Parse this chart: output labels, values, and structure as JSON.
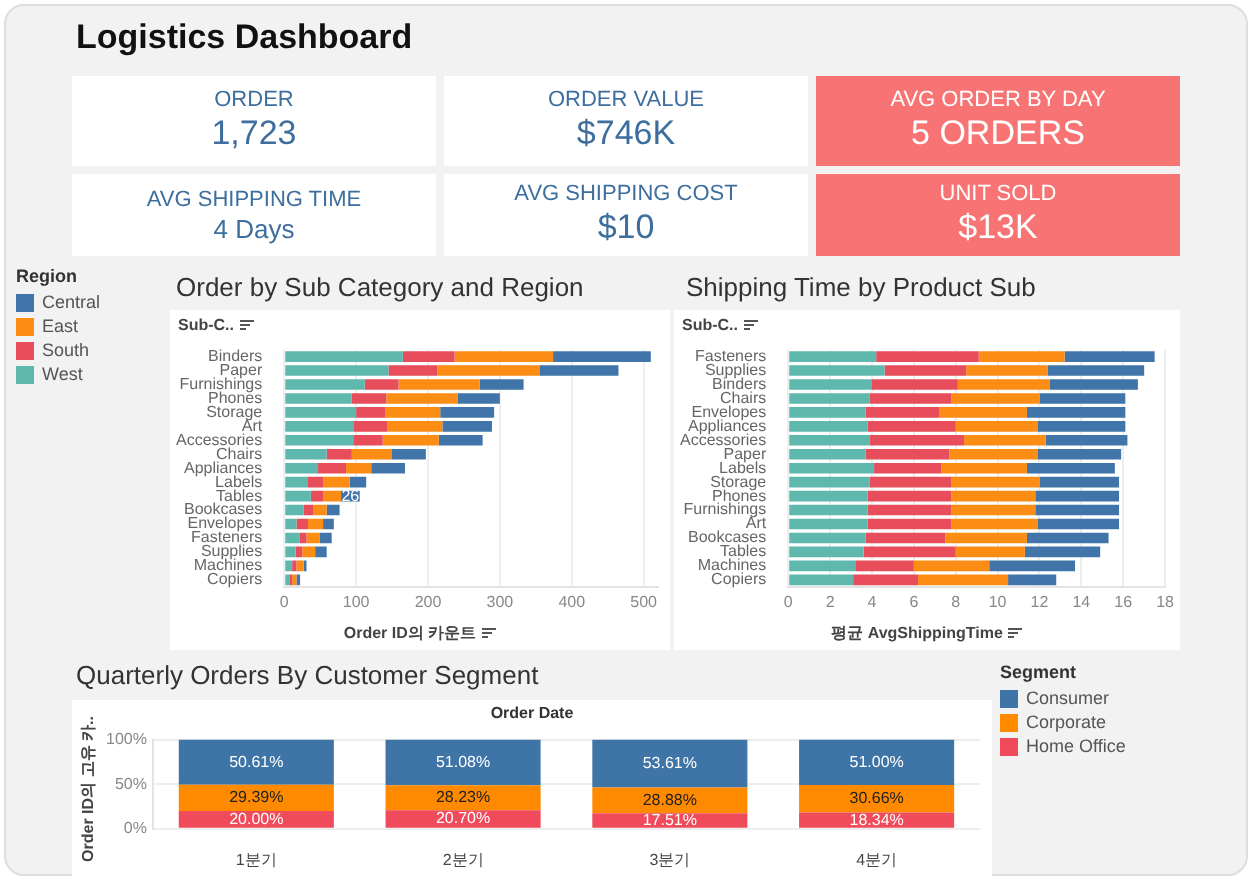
{
  "chart_data": [
    {
      "type": "other",
      "title": "Logistics Dashboard",
      "annotations": [
        "ORDER",
        "1,723",
        "ORDER VALUE",
        "$746K",
        "AVG ORDER BY DAY",
        "5 ORDERS",
        "AVG SHIPPING TIME",
        "4 Days",
        "AVG SHIPPING COST",
        "$10",
        "UNIT SOLD",
        "$13K"
      ],
      "colors": [
        "#ffffff",
        "#ffffff",
        "#f87474",
        "#ffffff",
        "#ffffff",
        "#f87474"
      ]
    },
    {
      "type": "bar",
      "orientation": "horizontal",
      "stacked": true,
      "title": "Order by Sub Category and Region",
      "xlabel": "Order ID의 카운트",
      "ylabel": "Sub-C..",
      "legend": "left",
      "legend_title": "Region",
      "grid": "x",
      "xlim": [
        0,
        520
      ],
      "xticks": [
        0,
        100,
        200,
        300,
        400,
        500
      ],
      "categories": [
        "Binders",
        "Paper",
        "Furnishings",
        "Phones",
        "Storage",
        "Art",
        "Accessories",
        "Chairs",
        "Appliances",
        "Labels",
        "Tables",
        "Bookcases",
        "Envelopes",
        "Fasteners",
        "Supplies",
        "Machines",
        "Copiers"
      ],
      "series": [
        {
          "name": "West",
          "color": "#5fb8ad",
          "values": [
            165,
            145,
            112,
            94,
            100,
            96,
            96,
            59,
            47,
            33,
            37,
            27,
            17,
            21,
            16,
            11,
            7
          ]
        },
        {
          "name": "South",
          "color": "#e84d5b",
          "values": [
            72,
            68,
            47,
            48,
            41,
            47,
            41,
            35,
            39,
            21,
            17,
            13,
            16,
            10,
            9,
            6,
            4
          ]
        },
        {
          "name": "East",
          "color": "#fb8c14",
          "values": [
            137,
            142,
            113,
            99,
            76,
            77,
            78,
            55,
            35,
            37,
            25,
            19,
            21,
            18,
            18,
            10,
            6
          ]
        },
        {
          "name": "Central",
          "color": "#4174a8",
          "values": [
            136,
            110,
            61,
            59,
            75,
            69,
            61,
            48,
            47,
            23,
            26,
            18,
            15,
            17,
            16,
            4,
            5
          ],
          "value_labels": [
            null,
            null,
            null,
            null,
            null,
            null,
            null,
            null,
            null,
            null,
            "26",
            null,
            null,
            null,
            null,
            null,
            null
          ]
        }
      ]
    },
    {
      "type": "bar",
      "orientation": "horizontal",
      "stacked": true,
      "title": "Shipping Time by Product Sub",
      "xlabel": "평균 AvgShippingTime",
      "ylabel": "Sub-C..",
      "grid": "x",
      "xlim": [
        0,
        18
      ],
      "xticks": [
        0,
        2,
        4,
        6,
        8,
        10,
        12,
        14,
        16,
        18
      ],
      "categories": [
        "Fasteners",
        "Supplies",
        "Binders",
        "Chairs",
        "Envelopes",
        "Appliances",
        "Accessories",
        "Paper",
        "Labels",
        "Storage",
        "Phones",
        "Furnishings",
        "Art",
        "Bookcases",
        "Tables",
        "Machines",
        "Copiers"
      ],
      "series": [
        {
          "color": "#5fb8ad",
          "values": [
            4.2,
            4.6,
            4.0,
            3.9,
            3.7,
            3.8,
            3.9,
            3.7,
            4.1,
            3.9,
            3.8,
            3.8,
            3.8,
            3.7,
            3.6,
            3.2,
            3.1
          ]
        },
        {
          "color": "#e84d5b",
          "values": [
            4.9,
            3.9,
            4.1,
            3.9,
            3.5,
            4.2,
            4.5,
            4.0,
            3.2,
            3.9,
            4.0,
            4.0,
            4.0,
            3.8,
            4.4,
            2.8,
            3.1
          ]
        },
        {
          "color": "#fb8c14",
          "values": [
            4.1,
            3.9,
            4.4,
            4.2,
            4.2,
            3.9,
            3.9,
            4.2,
            4.1,
            4.2,
            4.0,
            4.0,
            4.1,
            3.9,
            3.3,
            3.6,
            4.3
          ]
        },
        {
          "color": "#4174a8",
          "values": [
            4.3,
            4.6,
            4.2,
            4.1,
            4.7,
            4.2,
            3.9,
            4.0,
            4.2,
            3.8,
            4.0,
            4.0,
            3.9,
            3.9,
            3.6,
            4.1,
            2.3
          ]
        }
      ]
    },
    {
      "type": "bar",
      "stacked": true,
      "title": "Quarterly Orders By Customer Segment",
      "xlabel": "Order Date",
      "ylabel": "Order ID의 고유 카..",
      "legend": "right",
      "legend_title": "Segment",
      "grid": "y",
      "ylim": [
        0,
        100
      ],
      "yticks": [
        {
          "value": 0,
          "label": "0%"
        },
        {
          "value": 50,
          "label": "50%"
        },
        {
          "value": 100,
          "label": "100%"
        }
      ],
      "categories": [
        "1분기",
        "2분기",
        "3분기",
        "4분기"
      ],
      "series": [
        {
          "name": "Home Office",
          "color": "#ef4b5b",
          "values": [
            20.0,
            20.7,
            17.51,
            18.34
          ],
          "value_labels": [
            "20.00%",
            "20.70%",
            "17.51%",
            "18.34%"
          ]
        },
        {
          "name": "Corporate",
          "color": "#ff8a00",
          "values": [
            29.39,
            28.23,
            28.88,
            30.66
          ],
          "value_labels": [
            "29.39%",
            "28.23%",
            "28.88%",
            "30.66%"
          ]
        },
        {
          "name": "Consumer",
          "color": "#3f74a7",
          "values": [
            50.61,
            51.08,
            53.61,
            51.0
          ],
          "value_labels": [
            "50.61%",
            "51.08%",
            "53.61%",
            "51.00%"
          ]
        }
      ]
    }
  ]
}
